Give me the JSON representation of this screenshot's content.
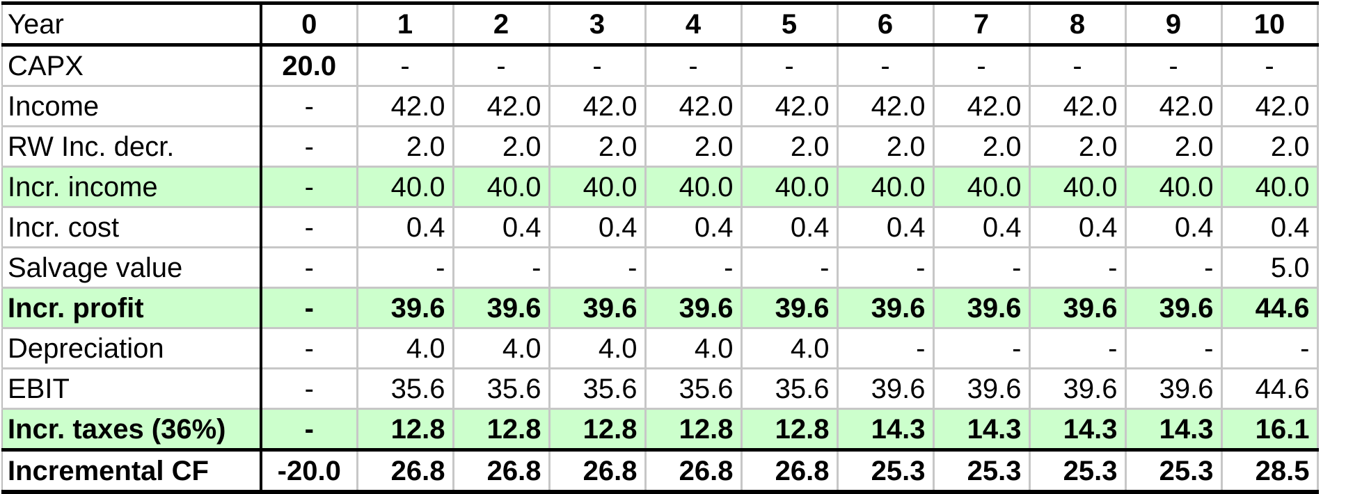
{
  "table": {
    "header": {
      "label": "Year",
      "years": [
        "0",
        "1",
        "2",
        "3",
        "4",
        "5",
        "6",
        "7",
        "8",
        "9",
        "10"
      ]
    },
    "rows": [
      {
        "label": "CAPX",
        "values": [
          "20.0",
          "-",
          "-",
          "-",
          "-",
          "-",
          "-",
          "-",
          "-",
          "-",
          "-"
        ],
        "style": "capx"
      },
      {
        "label": "Income",
        "values": [
          "-",
          "42.0",
          "42.0",
          "42.0",
          "42.0",
          "42.0",
          "42.0",
          "42.0",
          "42.0",
          "42.0",
          "42.0"
        ],
        "style": ""
      },
      {
        "label": "RW Inc. decr.",
        "values": [
          "-",
          "2.0",
          "2.0",
          "2.0",
          "2.0",
          "2.0",
          "2.0",
          "2.0",
          "2.0",
          "2.0",
          "2.0"
        ],
        "style": ""
      },
      {
        "label": "Incr. income",
        "values": [
          "-",
          "40.0",
          "40.0",
          "40.0",
          "40.0",
          "40.0",
          "40.0",
          "40.0",
          "40.0",
          "40.0",
          "40.0"
        ],
        "style": "green"
      },
      {
        "label": "Incr. cost",
        "values": [
          "-",
          "0.4",
          "0.4",
          "0.4",
          "0.4",
          "0.4",
          "0.4",
          "0.4",
          "0.4",
          "0.4",
          "0.4"
        ],
        "style": ""
      },
      {
        "label": "Salvage value",
        "values": [
          "-",
          "-",
          "-",
          "-",
          "-",
          "-",
          "-",
          "-",
          "-",
          "-",
          "5.0"
        ],
        "style": ""
      },
      {
        "label": "Incr. profit",
        "values": [
          "-",
          "39.6",
          "39.6",
          "39.6",
          "39.6",
          "39.6",
          "39.6",
          "39.6",
          "39.6",
          "39.6",
          "44.6"
        ],
        "style": "green bold"
      },
      {
        "label": "Depreciation",
        "values": [
          "-",
          "4.0",
          "4.0",
          "4.0",
          "4.0",
          "4.0",
          "-",
          "-",
          "-",
          "-",
          "-"
        ],
        "style": ""
      },
      {
        "label": "EBIT",
        "values": [
          "-",
          "35.6",
          "35.6",
          "35.6",
          "35.6",
          "35.6",
          "39.6",
          "39.6",
          "39.6",
          "39.6",
          "44.6"
        ],
        "style": ""
      },
      {
        "label": "Incr. taxes (36%)",
        "values": [
          "-",
          "12.8",
          "12.8",
          "12.8",
          "12.8",
          "12.8",
          "14.3",
          "14.3",
          "14.3",
          "14.3",
          "16.1"
        ],
        "style": "green bold"
      },
      {
        "label": "Incremental CF",
        "values": [
          "-20.0",
          "26.8",
          "26.8",
          "26.8",
          "26.8",
          "26.8",
          "25.3",
          "25.3",
          "25.3",
          "25.3",
          "28.5"
        ],
        "style": "total"
      }
    ]
  },
  "colors": {
    "highlight_row": "#ccffcc",
    "grid_line": "#c7c7c7",
    "border": "#000000"
  }
}
